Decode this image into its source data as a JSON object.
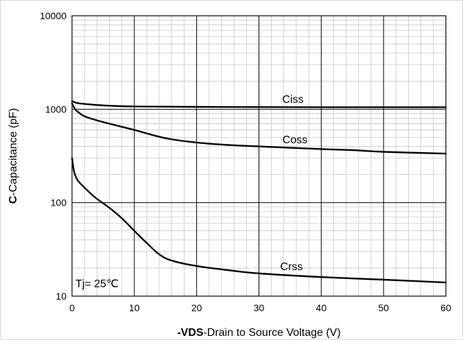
{
  "chart_data": {
    "type": "line",
    "xlabel_bold": "-VDS",
    "xlabel_rest": "-Drain to Source Voltage (V)",
    "ylabel_bold": "C",
    "ylabel_rest": "-Capacitance (pF)",
    "annotation": "Tj= 25℃",
    "xlim": [
      0,
      60
    ],
    "ylim": [
      10,
      10000
    ],
    "yscale": "log",
    "grid": true,
    "x_ticks": [
      0,
      10,
      20,
      30,
      40,
      50,
      60
    ],
    "y_ticks": [
      10,
      100,
      1000,
      10000
    ],
    "x_tick_labels": [
      "0",
      "10",
      "20",
      "30",
      "40",
      "50",
      "60"
    ],
    "y_tick_labels": [
      "10",
      "100",
      "1000",
      "10000"
    ],
    "series": [
      {
        "name": "Ciss",
        "x": [
          0,
          0.5,
          1,
          2,
          4,
          6,
          10,
          20,
          30,
          40,
          50,
          60
        ],
        "y": [
          1220,
          1180,
          1160,
          1140,
          1110,
          1090,
          1070,
          1060,
          1055,
          1050,
          1050,
          1050
        ]
      },
      {
        "name": "Coss",
        "x": [
          0,
          0.5,
          1,
          2,
          4,
          6,
          10,
          15,
          20,
          25,
          30,
          40,
          45,
          50,
          60
        ],
        "y": [
          1150,
          1000,
          930,
          840,
          760,
          700,
          600,
          490,
          440,
          415,
          400,
          375,
          365,
          350,
          335
        ]
      },
      {
        "name": "Crss",
        "x": [
          0,
          0.3,
          0.6,
          1,
          2,
          3,
          4,
          6,
          8,
          10,
          12,
          14,
          16,
          20,
          25,
          30,
          40,
          50,
          60
        ],
        "y": [
          300,
          220,
          190,
          170,
          145,
          125,
          110,
          88,
          68,
          50,
          37,
          28,
          24,
          21,
          19,
          17.5,
          16,
          15,
          14
        ]
      }
    ]
  }
}
